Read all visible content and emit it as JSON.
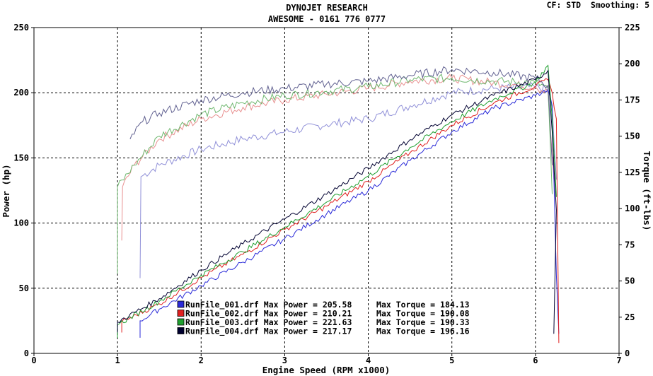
{
  "chart_data": {
    "type": "line",
    "title": "DYNOJET RESEARCH",
    "subtitle": "AWESOME - 0161 776 0777",
    "info": "CF: STD  Smoothing: 5",
    "xlabel": "Engine Speed (RPM x1000)",
    "ylabel_left": "Power (hp)",
    "ylabel_right": "Torque (ft-lbs)",
    "xlim": [
      0,
      7
    ],
    "ylim_left": [
      0,
      250
    ],
    "ylim_right": [
      0,
      225
    ],
    "xticks": [
      "0",
      "1",
      "2",
      "3",
      "4",
      "5",
      "6",
      "7"
    ],
    "yticks_left": [
      "0",
      "50",
      "100",
      "150",
      "200",
      "250"
    ],
    "yticks_right": [
      "0",
      "25",
      "50",
      "75",
      "100",
      "125",
      "150",
      "175",
      "200",
      "225"
    ],
    "grid": true,
    "legend_position": "bottom-center",
    "series": [
      {
        "name": "RunFile_001.drf",
        "legend_label": "RunFile_001.drf Max Power = 205.58     Max Torque = 184.13",
        "color": "#2a2ad8",
        "torque_color": "#9090d8",
        "power": [
          [
            1.27,
            12
          ],
          [
            1.27,
            25
          ],
          [
            1.5,
            34
          ],
          [
            2.0,
            52
          ],
          [
            2.5,
            70
          ],
          [
            3.0,
            88
          ],
          [
            3.5,
            107
          ],
          [
            4.0,
            125
          ],
          [
            4.5,
            148
          ],
          [
            5.0,
            170
          ],
          [
            5.5,
            188
          ],
          [
            6.0,
            198
          ],
          [
            6.15,
            202
          ],
          [
            6.2,
            190
          ],
          [
            6.25,
            60
          ],
          [
            6.28,
            15
          ]
        ],
        "torque": [
          [
            1.27,
            52
          ],
          [
            1.28,
            122
          ],
          [
            1.5,
            130
          ],
          [
            2.0,
            141
          ],
          [
            2.5,
            148
          ],
          [
            3.0,
            153
          ],
          [
            3.5,
            158
          ],
          [
            4.0,
            162
          ],
          [
            4.5,
            171
          ],
          [
            5.0,
            180
          ],
          [
            5.5,
            183
          ],
          [
            6.0,
            184
          ],
          [
            6.15,
            182
          ],
          [
            6.2,
            170
          ],
          [
            6.25,
            120
          ]
        ]
      },
      {
        "name": "RunFile_002.drf",
        "legend_label": "RunFile_002.drf Max Power = 210.21     Max Torque = 190.08",
        "color": "#e02020",
        "torque_color": "#e89090",
        "power": [
          [
            1.05,
            16
          ],
          [
            1.05,
            24
          ],
          [
            1.5,
            38
          ],
          [
            2.0,
            58
          ],
          [
            2.5,
            76
          ],
          [
            3.0,
            95
          ],
          [
            3.5,
            113
          ],
          [
            4.0,
            132
          ],
          [
            4.5,
            154
          ],
          [
            5.0,
            175
          ],
          [
            5.5,
            192
          ],
          [
            6.0,
            205
          ],
          [
            6.15,
            210
          ],
          [
            6.2,
            200
          ],
          [
            6.25,
            180
          ],
          [
            6.28,
            8
          ]
        ],
        "torque": [
          [
            1.05,
            78
          ],
          [
            1.06,
            115
          ],
          [
            1.2,
            130
          ],
          [
            1.5,
            148
          ],
          [
            2.0,
            162
          ],
          [
            2.5,
            170
          ],
          [
            3.0,
            175
          ],
          [
            3.5,
            179
          ],
          [
            4.0,
            183
          ],
          [
            4.5,
            188
          ],
          [
            5.0,
            190
          ],
          [
            5.5,
            187
          ],
          [
            6.0,
            184
          ],
          [
            6.15,
            180
          ],
          [
            6.22,
            120
          ]
        ]
      },
      {
        "name": "RunFile_003.drf",
        "legend_label": "RunFile_003.drf Max Power = 221.63     Max Torque = 190.33",
        "color": "#20a030",
        "torque_color": "#70b870",
        "power": [
          [
            1.0,
            12
          ],
          [
            1.0,
            22
          ],
          [
            1.5,
            40
          ],
          [
            2.0,
            60
          ],
          [
            2.5,
            78
          ],
          [
            3.0,
            97
          ],
          [
            3.5,
            116
          ],
          [
            4.0,
            136
          ],
          [
            4.5,
            158
          ],
          [
            5.0,
            178
          ],
          [
            5.5,
            195
          ],
          [
            6.0,
            208
          ],
          [
            6.15,
            221
          ],
          [
            6.2,
            180
          ],
          [
            6.25,
            120
          ]
        ],
        "torque": [
          [
            1.0,
            55
          ],
          [
            1.0,
            115
          ],
          [
            1.2,
            130
          ],
          [
            1.5,
            150
          ],
          [
            2.0,
            165
          ],
          [
            2.5,
            173
          ],
          [
            3.0,
            178
          ],
          [
            3.5,
            181
          ],
          [
            4.0,
            184
          ],
          [
            4.5,
            189
          ],
          [
            5.0,
            190
          ],
          [
            5.5,
            188
          ],
          [
            6.0,
            187
          ],
          [
            6.15,
            183
          ],
          [
            6.2,
            110
          ]
        ]
      },
      {
        "name": "RunFile_004.drf",
        "legend_label": "RunFile_004.drf Max Power = 217.17     Max Torque = 196.16",
        "color": "#000030",
        "torque_color": "#606090",
        "power": [
          [
            1.0,
            16
          ],
          [
            1.0,
            24
          ],
          [
            1.5,
            42
          ],
          [
            2.0,
            64
          ],
          [
            2.5,
            84
          ],
          [
            3.0,
            103
          ],
          [
            3.5,
            122
          ],
          [
            4.0,
            142
          ],
          [
            4.5,
            164
          ],
          [
            5.0,
            183
          ],
          [
            5.5,
            198
          ],
          [
            6.0,
            210
          ],
          [
            6.15,
            217
          ],
          [
            6.2,
            170
          ],
          [
            6.25,
            110
          ],
          [
            6.22,
            15
          ]
        ],
        "torque": [
          [
            1.15,
            148
          ],
          [
            1.3,
            160
          ],
          [
            1.5,
            166
          ],
          [
            2.0,
            175
          ],
          [
            2.5,
            180
          ],
          [
            3.0,
            183
          ],
          [
            3.5,
            186
          ],
          [
            4.0,
            188
          ],
          [
            4.5,
            192
          ],
          [
            5.0,
            196
          ],
          [
            5.5,
            194
          ],
          [
            6.0,
            190
          ],
          [
            6.15,
            185
          ],
          [
            6.2,
            130
          ]
        ]
      }
    ]
  }
}
